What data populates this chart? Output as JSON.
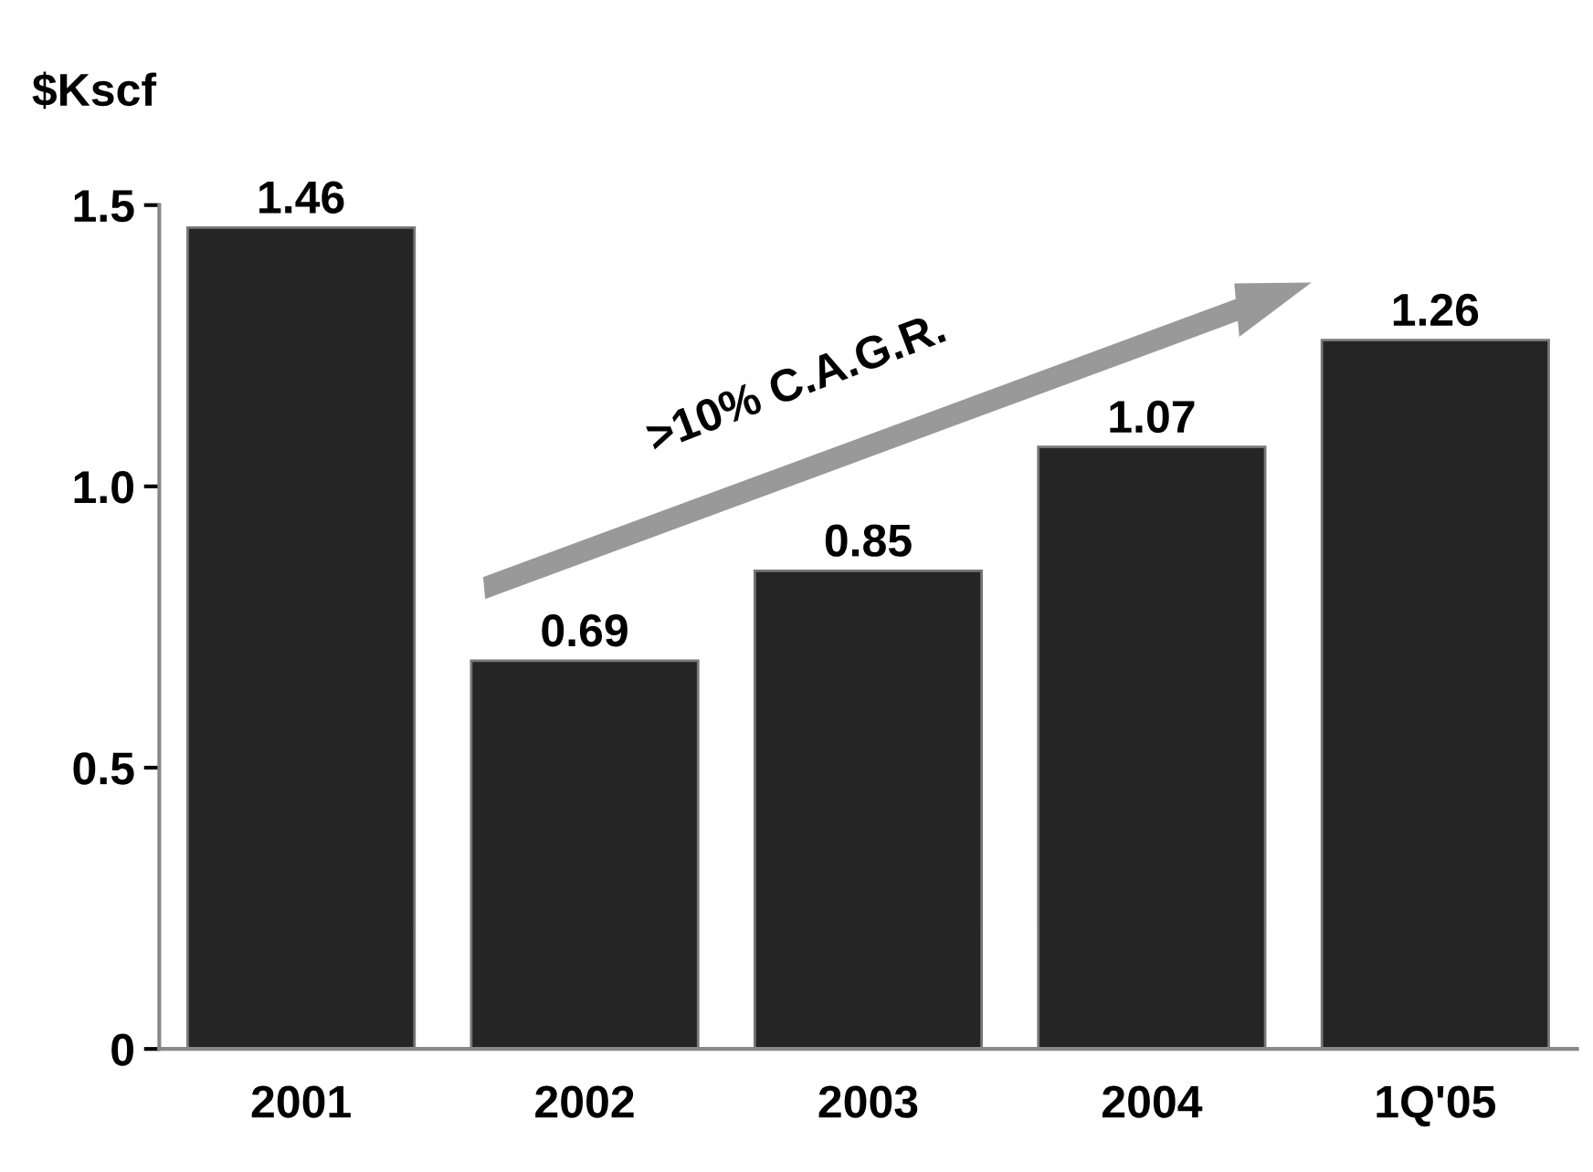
{
  "chart_data": {
    "type": "bar",
    "ylabel": "$Kscf",
    "categories": [
      "2001",
      "2002",
      "2003",
      "2004",
      "1Q'05"
    ],
    "values": [
      1.46,
      0.69,
      0.85,
      1.07,
      1.26
    ],
    "color": "#252525",
    "ylim": [
      0,
      1.5
    ],
    "yticks": [
      0,
      0.5,
      {
        "value": 1.0,
        "label": "1.0"
      },
      1.5
    ],
    "data_labels": true,
    "grid": false,
    "annotations": [
      ">10% C.A.G.R."
    ]
  }
}
